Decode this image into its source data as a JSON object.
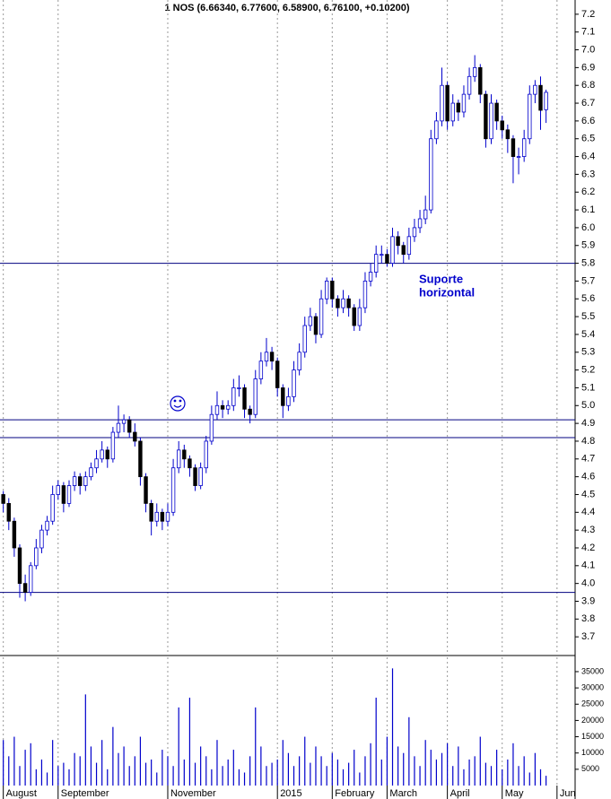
{
  "chart_data": [
    {
      "type": "candlestick",
      "title": "1 NOS (6.66340, 6.77600, 6.58900, 6.76100, +0.10200)",
      "annotation_lines": [
        "Suporte",
        "horizontal"
      ],
      "hlines": [
        5.8,
        4.92,
        4.82,
        3.95
      ],
      "up_color": "#ffffff",
      "down_color": "#000000",
      "wick_color": "#0000cc",
      "hline_color": "#000080",
      "xlim": [
        -0.6,
        104.3
      ],
      "xticks": [
        {
          "value": 0,
          "label": "August"
        },
        {
          "value": 10,
          "label": "September"
        },
        {
          "value": 30,
          "label": "November"
        },
        {
          "value": 50,
          "label": "2015"
        },
        {
          "value": 60,
          "label": "February"
        },
        {
          "value": 70,
          "label": "March"
        },
        {
          "value": 81,
          "label": "April"
        },
        {
          "value": 91,
          "label": "May"
        },
        {
          "value": 101,
          "label": "Jun"
        }
      ],
      "ylim": [
        3.6,
        7.28
      ],
      "yticks": [
        7.2,
        7.1,
        {
          "value": 7,
          "label": "7.0"
        },
        6.9,
        6.8,
        6.7,
        6.6,
        6.5,
        6.4,
        6.3,
        6.2,
        6.1,
        {
          "value": 6,
          "label": "6.0"
        },
        5.9,
        5.8,
        5.7,
        5.6,
        5.5,
        5.4,
        5.3,
        5.2,
        5.1,
        {
          "value": 5,
          "label": "5.0"
        },
        4.9,
        4.8,
        4.7,
        4.6,
        4.5,
        4.4,
        4.3,
        4.2,
        4.1,
        {
          "value": 4,
          "label": "4.0"
        },
        3.9,
        3.8,
        3.7
      ],
      "ohlc": [
        [
          4.5,
          4.52,
          4.4,
          4.45
        ],
        [
          4.45,
          4.48,
          4.3,
          4.35
        ],
        [
          4.35,
          4.37,
          4.15,
          4.2
        ],
        [
          4.2,
          4.22,
          3.92,
          4.0
        ],
        [
          4.0,
          4.05,
          3.9,
          3.95
        ],
        [
          3.95,
          4.12,
          3.93,
          4.1
        ],
        [
          4.1,
          4.25,
          4.08,
          4.2
        ],
        [
          4.2,
          4.33,
          4.17,
          4.3
        ],
        [
          4.3,
          4.38,
          4.27,
          4.35
        ],
        [
          4.35,
          4.55,
          4.33,
          4.5
        ],
        [
          4.5,
          4.58,
          4.47,
          4.55
        ],
        [
          4.55,
          4.57,
          4.4,
          4.45
        ],
        [
          4.45,
          4.58,
          4.43,
          4.55
        ],
        [
          4.55,
          4.63,
          4.52,
          4.6
        ],
        [
          4.6,
          4.62,
          4.5,
          4.55
        ],
        [
          4.55,
          4.63,
          4.52,
          4.6
        ],
        [
          4.6,
          4.68,
          4.58,
          4.65
        ],
        [
          4.65,
          4.75,
          4.62,
          4.7
        ],
        [
          4.7,
          4.8,
          4.68,
          4.75
        ],
        [
          4.75,
          4.77,
          4.65,
          4.7
        ],
        [
          4.7,
          4.88,
          4.68,
          4.85
        ],
        [
          4.85,
          5.0,
          4.82,
          4.9
        ],
        [
          4.9,
          4.95,
          4.85,
          4.92
        ],
        [
          4.92,
          4.94,
          4.82,
          4.85
        ],
        [
          4.85,
          4.9,
          4.77,
          4.8
        ],
        [
          4.8,
          4.82,
          4.55,
          4.6
        ],
        [
          4.6,
          4.62,
          4.4,
          4.45
        ],
        [
          4.45,
          4.47,
          4.27,
          4.35
        ],
        [
          4.35,
          4.45,
          4.32,
          4.4
        ],
        [
          4.4,
          4.42,
          4.3,
          4.35
        ],
        [
          4.35,
          4.45,
          4.32,
          4.4
        ],
        [
          4.4,
          4.7,
          4.38,
          4.65
        ],
        [
          4.65,
          4.8,
          4.62,
          4.75
        ],
        [
          4.75,
          4.78,
          4.65,
          4.7
        ],
        [
          4.7,
          4.72,
          4.6,
          4.65
        ],
        [
          4.65,
          4.67,
          4.52,
          4.55
        ],
        [
          4.55,
          4.68,
          4.53,
          4.65
        ],
        [
          4.65,
          4.83,
          4.62,
          4.8
        ],
        [
          4.8,
          5.0,
          4.78,
          4.95
        ],
        [
          4.95,
          5.08,
          4.92,
          5.0
        ],
        [
          5.0,
          5.03,
          4.93,
          4.98
        ],
        [
          4.98,
          5.03,
          4.95,
          5.0
        ],
        [
          5.0,
          5.15,
          4.97,
          5.1
        ],
        [
          5.1,
          5.17,
          5.05,
          5.1
        ],
        [
          5.1,
          5.12,
          4.93,
          4.98
        ],
        [
          4.98,
          5.0,
          4.9,
          4.95
        ],
        [
          4.95,
          5.2,
          4.93,
          5.15
        ],
        [
          5.15,
          5.3,
          5.12,
          5.25
        ],
        [
          5.25,
          5.38,
          5.22,
          5.3
        ],
        [
          5.3,
          5.33,
          5.2,
          5.25
        ],
        [
          5.25,
          5.27,
          5.05,
          5.1
        ],
        [
          5.1,
          5.12,
          4.93,
          5.0
        ],
        [
          5.0,
          5.1,
          4.97,
          5.05
        ],
        [
          5.05,
          5.25,
          5.02,
          5.2
        ],
        [
          5.2,
          5.35,
          5.17,
          5.3
        ],
        [
          5.3,
          5.5,
          5.27,
          5.45
        ],
        [
          5.45,
          5.55,
          5.42,
          5.5
        ],
        [
          5.5,
          5.52,
          5.35,
          5.4
        ],
        [
          5.4,
          5.65,
          5.38,
          5.6
        ],
        [
          5.6,
          5.72,
          5.57,
          5.7
        ],
        [
          5.7,
          5.72,
          5.55,
          5.6
        ],
        [
          5.6,
          5.62,
          5.5,
          5.55
        ],
        [
          5.55,
          5.65,
          5.52,
          5.6
        ],
        [
          5.6,
          5.62,
          5.5,
          5.55
        ],
        [
          5.55,
          5.57,
          5.42,
          5.45
        ],
        [
          5.45,
          5.6,
          5.42,
          5.55
        ],
        [
          5.55,
          5.75,
          5.52,
          5.7
        ],
        [
          5.7,
          5.8,
          5.67,
          5.75
        ],
        [
          5.75,
          5.9,
          5.72,
          5.85
        ],
        [
          5.85,
          5.9,
          5.8,
          5.85
        ],
        [
          5.85,
          5.88,
          5.78,
          5.8
        ],
        [
          5.8,
          6.0,
          5.78,
          5.95
        ],
        [
          5.95,
          5.98,
          5.85,
          5.9
        ],
        [
          5.9,
          5.92,
          5.8,
          5.85
        ],
        [
          5.85,
          6.0,
          5.82,
          5.95
        ],
        [
          5.95,
          6.05,
          5.92,
          6.0
        ],
        [
          6.0,
          6.1,
          5.97,
          6.05
        ],
        [
          6.05,
          6.18,
          6.02,
          6.1
        ],
        [
          6.1,
          6.55,
          6.08,
          6.5
        ],
        [
          6.5,
          6.65,
          6.47,
          6.6
        ],
        [
          6.6,
          6.9,
          6.57,
          6.8
        ],
        [
          6.8,
          6.82,
          6.55,
          6.6
        ],
        [
          6.6,
          6.75,
          6.57,
          6.7
        ],
        [
          6.7,
          6.72,
          6.6,
          6.65
        ],
        [
          6.65,
          6.8,
          6.62,
          6.75
        ],
        [
          6.75,
          6.9,
          6.72,
          6.85
        ],
        [
          6.85,
          6.97,
          6.82,
          6.9
        ],
        [
          6.9,
          6.92,
          6.7,
          6.75
        ],
        [
          6.75,
          6.77,
          6.45,
          6.5
        ],
        [
          6.5,
          6.75,
          6.47,
          6.7
        ],
        [
          6.7,
          6.72,
          6.55,
          6.6
        ],
        [
          6.6,
          6.63,
          6.5,
          6.55
        ],
        [
          6.55,
          6.58,
          6.42,
          6.5
        ],
        [
          6.5,
          6.52,
          6.25,
          6.4
        ],
        [
          6.4,
          6.45,
          6.3,
          6.4
        ],
        [
          6.4,
          6.55,
          6.37,
          6.5
        ],
        [
          6.5,
          6.8,
          6.47,
          6.75
        ],
        [
          6.75,
          6.83,
          6.7,
          6.8
        ],
        [
          6.8,
          6.85,
          6.55,
          6.66
        ],
        [
          6.6634,
          6.776,
          6.589,
          6.761
        ]
      ]
    },
    {
      "type": "bar",
      "color": "#0000cc",
      "ylim": [
        0,
        39400
      ],
      "yticks": [
        35000,
        30000,
        25000,
        20000,
        15000,
        10000,
        5000
      ],
      "values": [
        14000,
        9000,
        15000,
        6000,
        11000,
        13000,
        5000,
        8000,
        4000,
        14000,
        6000,
        7000,
        5000,
        10000,
        9000,
        28000,
        12000,
        7000,
        14000,
        5000,
        18000,
        10000,
        12000,
        6000,
        9000,
        15000,
        7000,
        8000,
        4000,
        11000,
        9000,
        6000,
        24000,
        8000,
        27000,
        7000,
        12000,
        9000,
        5000,
        14000,
        6000,
        8000,
        11000,
        5000,
        4000,
        9000,
        24000,
        12000,
        6000,
        7000,
        8000,
        14000,
        10000,
        6000,
        9000,
        15000,
        7000,
        12000,
        9000,
        6000,
        10000,
        8000,
        5000,
        7000,
        11000,
        4000,
        9000,
        13000,
        27000,
        8000,
        15000,
        36000,
        12000,
        10000,
        21000,
        9000,
        6000,
        14000,
        11000,
        8000,
        10000,
        13000,
        6000,
        12000,
        5000,
        8000,
        9000,
        15000,
        7000,
        6000,
        11000,
        5000,
        8000,
        13000,
        6000,
        9000,
        4000,
        10000,
        5000,
        3000
      ]
    }
  ]
}
